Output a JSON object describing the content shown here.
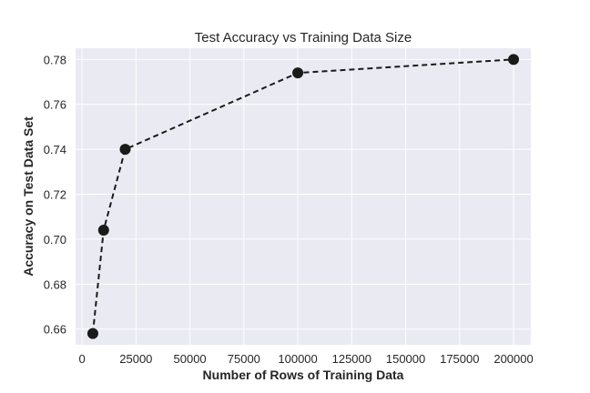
{
  "chart_data": {
    "type": "line",
    "title": "Test Accuracy vs Training Data Size",
    "xlabel": "Number of Rows of Training Data",
    "ylabel": "Accuracy on Test Data Set",
    "x": [
      5000,
      10000,
      20000,
      100000,
      200000
    ],
    "series": [
      {
        "values": [
          0.658,
          0.704,
          0.74,
          0.774,
          0.78
        ]
      }
    ],
    "xlim": [
      -3000,
      208000
    ],
    "ylim": [
      0.653,
      0.785
    ],
    "xticks": [
      0,
      25000,
      50000,
      75000,
      100000,
      125000,
      150000,
      175000,
      200000
    ],
    "xtick_labels": [
      "0",
      "25000",
      "50000",
      "75000",
      "100000",
      "125000",
      "150000",
      "175000",
      "200000"
    ],
    "yticks": [
      0.66,
      0.68,
      0.7,
      0.72,
      0.74,
      0.76,
      0.78
    ],
    "ytick_labels": [
      "0.66",
      "0.68",
      "0.70",
      "0.72",
      "0.74",
      "0.76",
      "0.78"
    ],
    "line_style": "dashed",
    "marker": "circle",
    "grid": true,
    "colors": {
      "plot_background": "#eaeaf2",
      "grid": "#ffffff",
      "line": "#1a1a1a",
      "marker": "#1a1a1a"
    }
  }
}
